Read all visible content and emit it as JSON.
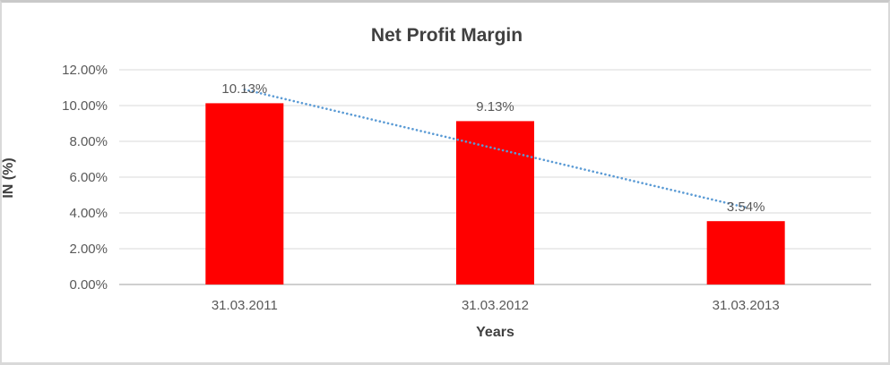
{
  "chart_data": {
    "type": "bar",
    "title": "Net Profit Margin",
    "xlabel": "Years",
    "ylabel": "IN (%)",
    "categories": [
      "31.03.2011",
      "31.03.2012",
      "31.03.2013"
    ],
    "values": [
      10.13,
      9.13,
      3.54
    ],
    "data_labels": [
      "10.13%",
      "9.13%",
      "3.54%"
    ],
    "ylim": [
      0,
      12
    ],
    "ytick_step": 2,
    "ytick_labels": [
      "0.00%",
      "2.00%",
      "4.00%",
      "6.00%",
      "8.00%",
      "10.00%",
      "12.00%"
    ],
    "grid": true,
    "legend": "none",
    "bar_color": "#ff0000",
    "gridline_color": "#d9d9d9",
    "axis_line_color": "#bfbfbf",
    "trendline": {
      "type": "linear",
      "style": "dotted",
      "color": "#5b9bd5"
    }
  }
}
